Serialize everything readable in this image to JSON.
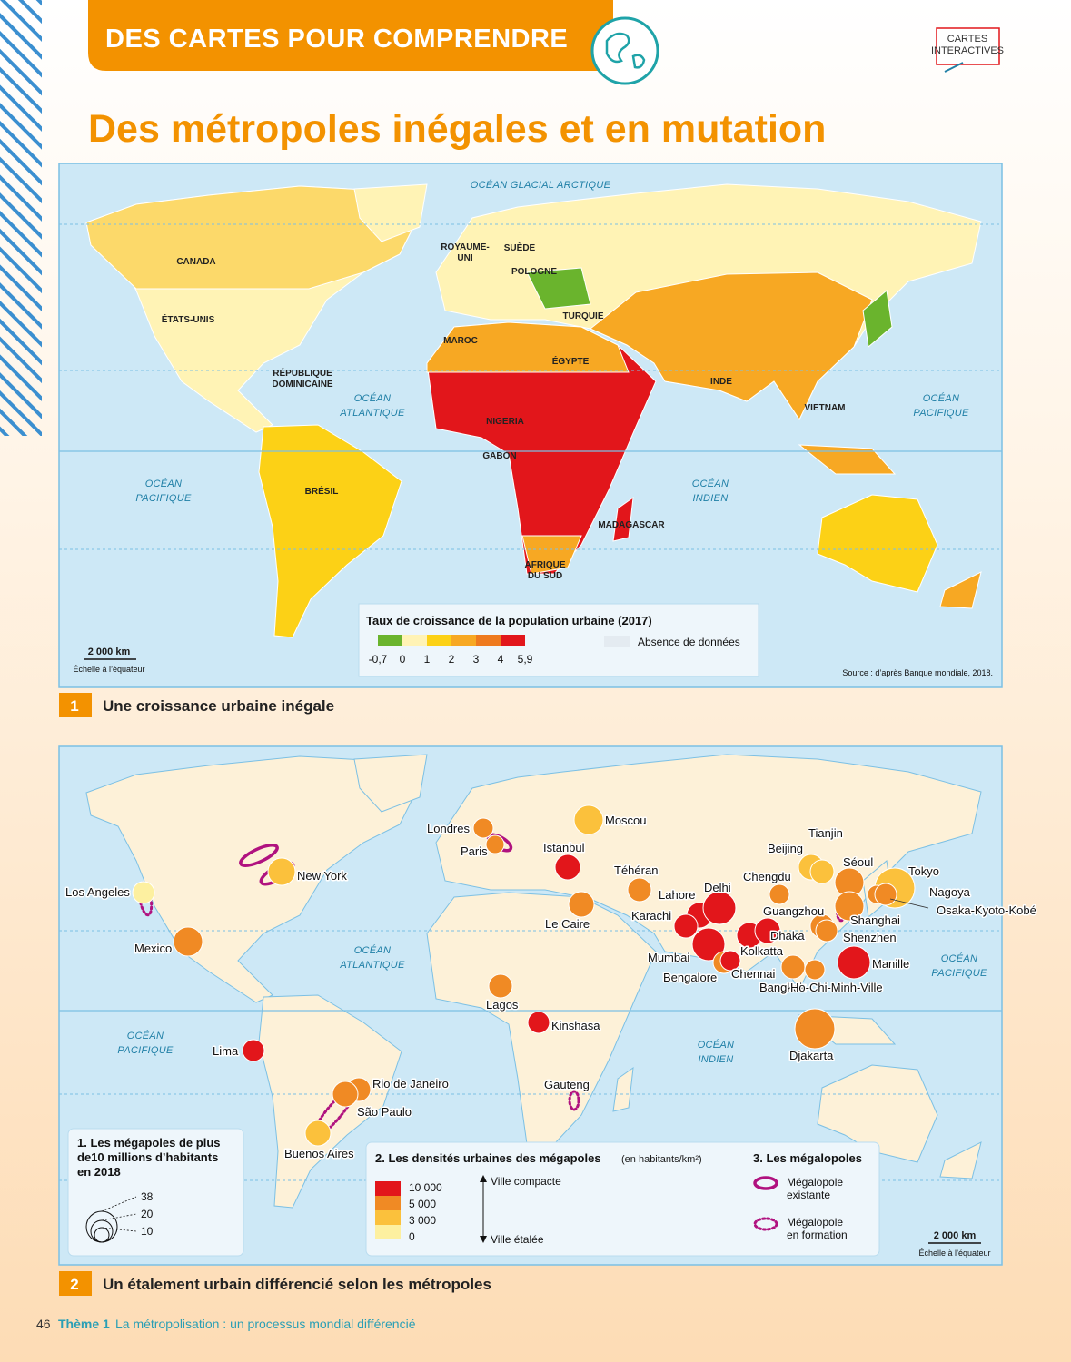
{
  "header": {
    "banner": "DES CARTES POUR COMPRENDRE",
    "badge": [
      "CARTES",
      "INTERACTIVES"
    ],
    "title": "Des métropoles inégales et en mutation"
  },
  "map1": {
    "oceans": [
      [
        "OCÉAN GLACIAL ARCTIQUE"
      ],
      [
        "OCÉAN",
        "ATLANTIQUE"
      ],
      [
        "OCÉAN",
        "PACIFIQUE"
      ],
      [
        "OCÉAN",
        "PACIFIQUE"
      ],
      [
        "OCÉAN",
        "INDIEN"
      ]
    ],
    "countries": [
      [
        "CANADA"
      ],
      [
        "ÉTATS-UNIS"
      ],
      [
        "RÉPUBLIQUE",
        "DOMINICAINE"
      ],
      [
        "BRÉSIL"
      ],
      [
        "ROYAUME-",
        "UNI"
      ],
      [
        "SUÈDE"
      ],
      [
        "POLOGNE"
      ],
      [
        "TURQUIE"
      ],
      [
        "MAROC"
      ],
      [
        "ÉGYPTE"
      ],
      [
        "NIGERIA"
      ],
      [
        "GABON"
      ],
      [
        "MADAGASCAR"
      ],
      [
        "AFRIQUE",
        "DU SUD"
      ],
      [
        "INDE"
      ],
      [
        "VIETNAM"
      ]
    ],
    "legend": {
      "title": "Taux de croissance de la population urbaine (2017)",
      "colors": [
        "#6ab42d",
        "#fff3b5",
        "#fcd116",
        "#f7a823",
        "#ee7a1e",
        "#e2161b"
      ],
      "labels": [
        "-0,7",
        "0",
        "1",
        "2",
        "3",
        "4",
        "5,9"
      ],
      "missing_label": "Absence de données",
      "missing_color": "#e4ebf1"
    },
    "scale": {
      "distance": "2 000 km",
      "note": "Échelle à l’équateur"
    },
    "source": "Source : d’après Banque mondiale, 2018.",
    "caption": {
      "number": "1",
      "text": "Une croissance urbaine inégale"
    }
  },
  "map2": {
    "oceans": [
      [
        "OCÉAN",
        "ATLANTIQUE"
      ],
      [
        "OCÉAN",
        "PACIFIQUE"
      ],
      [
        "OCÉAN",
        "PACIFIQUE"
      ],
      [
        "OCÉAN",
        "INDIEN"
      ]
    ],
    "cities": [
      {
        "name": "Moscou",
        "color": "#fbc13c"
      },
      {
        "name": "Londres",
        "color": "#f08a24"
      },
      {
        "name": "Paris",
        "color": "#f08a24"
      },
      {
        "name": "Istanbul",
        "color": "#e2161b"
      },
      {
        "name": "Téhéran",
        "color": "#f08a24"
      },
      {
        "name": "Le Caire",
        "color": "#f08a24"
      },
      {
        "name": "Lahore",
        "color": "#e2161b"
      },
      {
        "name": "Delhi",
        "color": "#e2161b"
      },
      {
        "name": "Karachi",
        "color": "#e2161b"
      },
      {
        "name": "Mumbai",
        "color": "#e2161b"
      },
      {
        "name": "Bengalore",
        "color": "#f08a24"
      },
      {
        "name": "Chennai",
        "color": "#e2161b"
      },
      {
        "name": "Kolkatta",
        "color": "#e2161b"
      },
      {
        "name": "Dhaka",
        "color": "#e2161b"
      },
      {
        "name": "Chengdu",
        "color": "#f08a24"
      },
      {
        "name": "Beijing",
        "color": "#fbc13c"
      },
      {
        "name": "Tianjin",
        "color": "#fbc13c"
      },
      {
        "name": "Séoul",
        "color": "#f08a24"
      },
      {
        "name": "Guangzhou",
        "color": "#f08a24"
      },
      {
        "name": "Shenzhen",
        "color": "#f08a24"
      },
      {
        "name": "Shanghai",
        "color": "#f08a24"
      },
      {
        "name": "Tokyo",
        "color": "#fbc13c"
      },
      {
        "name": "Nagoya",
        "color": "#f08a24"
      },
      {
        "name": "Osaka-Kyoto-Kobé",
        "color": "#f08a24"
      },
      {
        "name": "Manille",
        "color": "#e2161b"
      },
      {
        "name": "Bangkok",
        "color": "#f08a24"
      },
      {
        "name": "Ho-Chi-Minh-Ville",
        "color": "#f08a24"
      },
      {
        "name": "Djakarta",
        "color": "#f08a24"
      },
      {
        "name": "Lagos",
        "color": "#f08a24"
      },
      {
        "name": "Kinshasa",
        "color": "#e2161b"
      },
      {
        "name": "Lima",
        "color": "#e2161b"
      },
      {
        "name": "Rio de Janeiro",
        "color": "#f08a24"
      },
      {
        "name": "São Paulo",
        "color": "#f08a24"
      },
      {
        "name": "Buenos Aires",
        "color": "#fbc13c"
      },
      {
        "name": "Mexico",
        "color": "#f08a24"
      },
      {
        "name": "Los Angeles",
        "color": "#fdf0a0"
      },
      {
        "name": "New York",
        "color": "#fbc13c"
      }
    ],
    "other_labels": [
      "Gauteng"
    ],
    "legend_sizes": {
      "title": [
        "1. Les mégapoles de plus",
        "de10 millions d’habitants",
        "en 2018"
      ],
      "labels": [
        "38",
        "20",
        "10"
      ]
    },
    "legend_density": {
      "title": "2. Les densités urbaines des mégapoles",
      "unit": "(en habitants/km²)",
      "colors": [
        "#e2161b",
        "#f08a24",
        "#fbc13c",
        "#fdf0a0"
      ],
      "labels": [
        "10 000",
        "5 000",
        "3 000",
        "0"
      ],
      "top": "Ville compacte",
      "bottom": "Ville étalée"
    },
    "legend_megalopoles": {
      "title": "3. Les mégalopoles",
      "existing": [
        "Mégalopole",
        "existante"
      ],
      "forming": [
        "Mégalopole",
        "en formation"
      ]
    },
    "scale": {
      "distance": "2 000 km",
      "note": "Échelle à l’équateur"
    },
    "caption": {
      "number": "2",
      "text": "Un étalement urbain différencié selon les métropoles"
    }
  },
  "footer": {
    "page": "46",
    "theme": "Thème 1",
    "text": "La métropolisation : un processus mondial différencié"
  }
}
